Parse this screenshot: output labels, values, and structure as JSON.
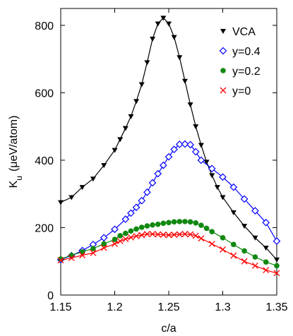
{
  "chart_data": {
    "type": "line",
    "xlabel": "c/a",
    "ylabel_main": "K",
    "ylabel_sub": "u",
    "ylabel_unit": "(μeV/atom)",
    "xlim": [
      1.15,
      1.35
    ],
    "ylim": [
      0,
      850
    ],
    "xticks": [
      "1.15",
      "1.2",
      "1.25",
      "1.3",
      "1.35"
    ],
    "xtick_values": [
      1.15,
      1.2,
      1.25,
      1.3,
      1.35
    ],
    "yticks": [
      "0",
      "200",
      "400",
      "600",
      "800"
    ],
    "ytick_values": [
      0,
      200,
      400,
      600,
      800
    ],
    "grid": false,
    "legend_position": "top-right",
    "x": [
      1.15,
      1.155,
      1.16,
      1.165,
      1.17,
      1.175,
      1.18,
      1.185,
      1.19,
      1.195,
      1.2,
      1.205,
      1.21,
      1.215,
      1.22,
      1.225,
      1.23,
      1.235,
      1.24,
      1.245,
      1.25,
      1.255,
      1.26,
      1.265,
      1.27,
      1.275,
      1.28,
      1.285,
      1.29,
      1.295,
      1.3,
      1.305,
      1.31,
      1.315,
      1.32,
      1.325,
      1.33,
      1.335,
      1.34,
      1.345,
      1.35
    ],
    "series": [
      {
        "name": "VCA",
        "color": "#000000",
        "marker": "triangle-down",
        "x": [
          1.15,
          1.16,
          1.17,
          1.18,
          1.19,
          1.2,
          1.205,
          1.21,
          1.215,
          1.22,
          1.225,
          1.23,
          1.235,
          1.24,
          1.245,
          1.25,
          1.255,
          1.26,
          1.265,
          1.27,
          1.275,
          1.28,
          1.285,
          1.29,
          1.295,
          1.3,
          1.31,
          1.32,
          1.33,
          1.34,
          1.35
        ],
        "values": [
          275,
          290,
          320,
          345,
          385,
          430,
          462,
          495,
          530,
          575,
          625,
          690,
          760,
          805,
          822,
          805,
          765,
          705,
          635,
          565,
          500,
          445,
          395,
          355,
          320,
          290,
          245,
          205,
          170,
          140,
          105
        ]
      },
      {
        "name": "y=0.4",
        "color": "#0000ff",
        "marker": "diamond-open",
        "x": [
          1.15,
          1.16,
          1.17,
          1.18,
          1.19,
          1.2,
          1.21,
          1.215,
          1.22,
          1.225,
          1.23,
          1.235,
          1.24,
          1.245,
          1.25,
          1.255,
          1.26,
          1.265,
          1.27,
          1.275,
          1.28,
          1.29,
          1.3,
          1.31,
          1.32,
          1.33,
          1.34,
          1.35
        ],
        "values": [
          105,
          117,
          132,
          150,
          170,
          195,
          225,
          243,
          260,
          280,
          305,
          333,
          360,
          385,
          410,
          432,
          447,
          448,
          446,
          425,
          400,
          375,
          350,
          320,
          285,
          250,
          215,
          160
        ]
      },
      {
        "name": "y=0.2",
        "color": "#118811",
        "marker": "circle-filled",
        "x": [
          1.15,
          1.16,
          1.17,
          1.18,
          1.19,
          1.2,
          1.205,
          1.21,
          1.215,
          1.22,
          1.225,
          1.23,
          1.235,
          1.24,
          1.245,
          1.25,
          1.255,
          1.26,
          1.265,
          1.27,
          1.275,
          1.28,
          1.285,
          1.29,
          1.3,
          1.31,
          1.32,
          1.33,
          1.34,
          1.35
        ],
        "values": [
          107,
          118,
          128,
          138,
          152,
          165,
          176,
          183,
          190,
          196,
          201,
          205,
          208,
          210,
          213,
          215,
          217,
          218,
          218,
          217,
          214,
          207,
          198,
          188,
          170,
          150,
          131,
          113,
          98,
          87
        ]
      },
      {
        "name": "y=0",
        "color": "#ff0000",
        "marker": "cross",
        "x": [
          1.15,
          1.16,
          1.17,
          1.18,
          1.19,
          1.2,
          1.205,
          1.21,
          1.215,
          1.22,
          1.225,
          1.23,
          1.235,
          1.24,
          1.245,
          1.25,
          1.255,
          1.26,
          1.265,
          1.27,
          1.275,
          1.28,
          1.29,
          1.3,
          1.31,
          1.32,
          1.33,
          1.34,
          1.35
        ],
        "values": [
          103,
          110,
          118,
          125,
          140,
          152,
          160,
          166,
          171,
          175,
          178,
          181,
          181,
          180,
          179,
          178,
          179,
          180,
          181,
          180,
          176,
          168,
          152,
          135,
          117,
          100,
          87,
          74,
          65
        ]
      }
    ]
  }
}
